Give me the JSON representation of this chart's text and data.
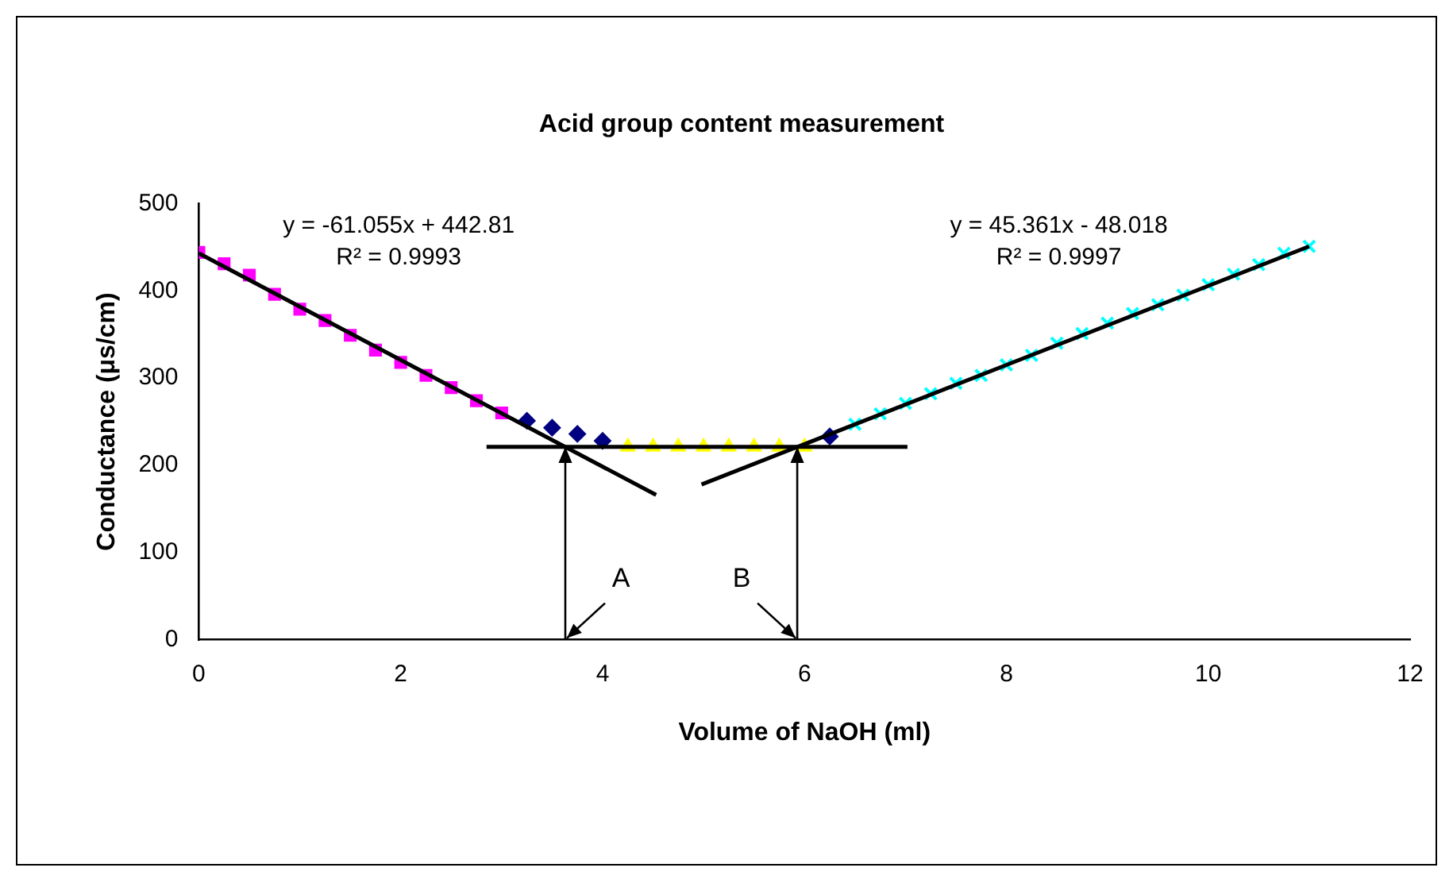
{
  "chart_data": {
    "type": "scatter",
    "title": "Acid group content measurement",
    "xlabel": "Volume of NaOH (ml)",
    "ylabel": "Conductance (μs/cm)",
    "xlim": [
      0,
      12
    ],
    "xticks": [
      0,
      2,
      4,
      6,
      8,
      10,
      12
    ],
    "ylim": [
      0,
      500
    ],
    "yticks": [
      0,
      100,
      200,
      300,
      400,
      500
    ],
    "grid": false,
    "legend": false,
    "series": [
      {
        "type": "scatter",
        "marker": "diamond",
        "color": "#000080",
        "x": [
          3.25,
          3.5,
          3.75,
          4,
          6.25
        ],
        "values": [
          251,
          243,
          236,
          228,
          233
        ]
      },
      {
        "type": "scatter",
        "marker": "square",
        "color": "#ff00ff",
        "x": [
          0,
          0.25,
          0.5,
          0.75,
          1,
          1.25,
          1.5,
          1.75,
          2,
          2.25,
          2.5,
          2.75,
          3
        ],
        "values": [
          444,
          431,
          418,
          396,
          379,
          366,
          349,
          332,
          318,
          303,
          289,
          274,
          260
        ]
      },
      {
        "type": "scatter",
        "marker": "triangle",
        "color": "#ffff00",
        "x": [
          4.25,
          4.5,
          4.75,
          5,
          5.25,
          5.5,
          5.75,
          6
        ],
        "values": [
          221,
          221,
          221,
          221,
          221,
          221,
          221,
          221
        ]
      },
      {
        "type": "scatter",
        "marker": "cross",
        "color": "#00ffff",
        "x": [
          6.5,
          6.75,
          7,
          7.25,
          7.5,
          7.75,
          8,
          8.25,
          8.5,
          8.75,
          9,
          9.25,
          9.5,
          9.75,
          10,
          10.25,
          10.5,
          10.75,
          11
        ],
        "values": [
          247,
          259,
          271,
          282,
          294,
          303,
          315,
          326,
          340,
          351,
          363,
          374,
          384,
          395,
          407,
          419,
          430,
          443,
          451
        ]
      },
      {
        "type": "line",
        "marker": "none",
        "color": "#000000",
        "x": [
          0,
          4.53
        ],
        "values": [
          443,
          166
        ]
      },
      {
        "type": "line",
        "marker": "none",
        "color": "#000000",
        "x": [
          4.98,
          11
        ],
        "values": [
          178,
          451
        ]
      },
      {
        "type": "line",
        "marker": "none",
        "color": "#000000",
        "x": [
          2.85,
          7.02
        ],
        "values": [
          221,
          221
        ]
      }
    ],
    "annotations": [
      "y = -61.055x + 442.81\nR² = 0.9993",
      "y = 45.361x - 48.018\nR² = 0.9997",
      "A",
      "B"
    ]
  }
}
